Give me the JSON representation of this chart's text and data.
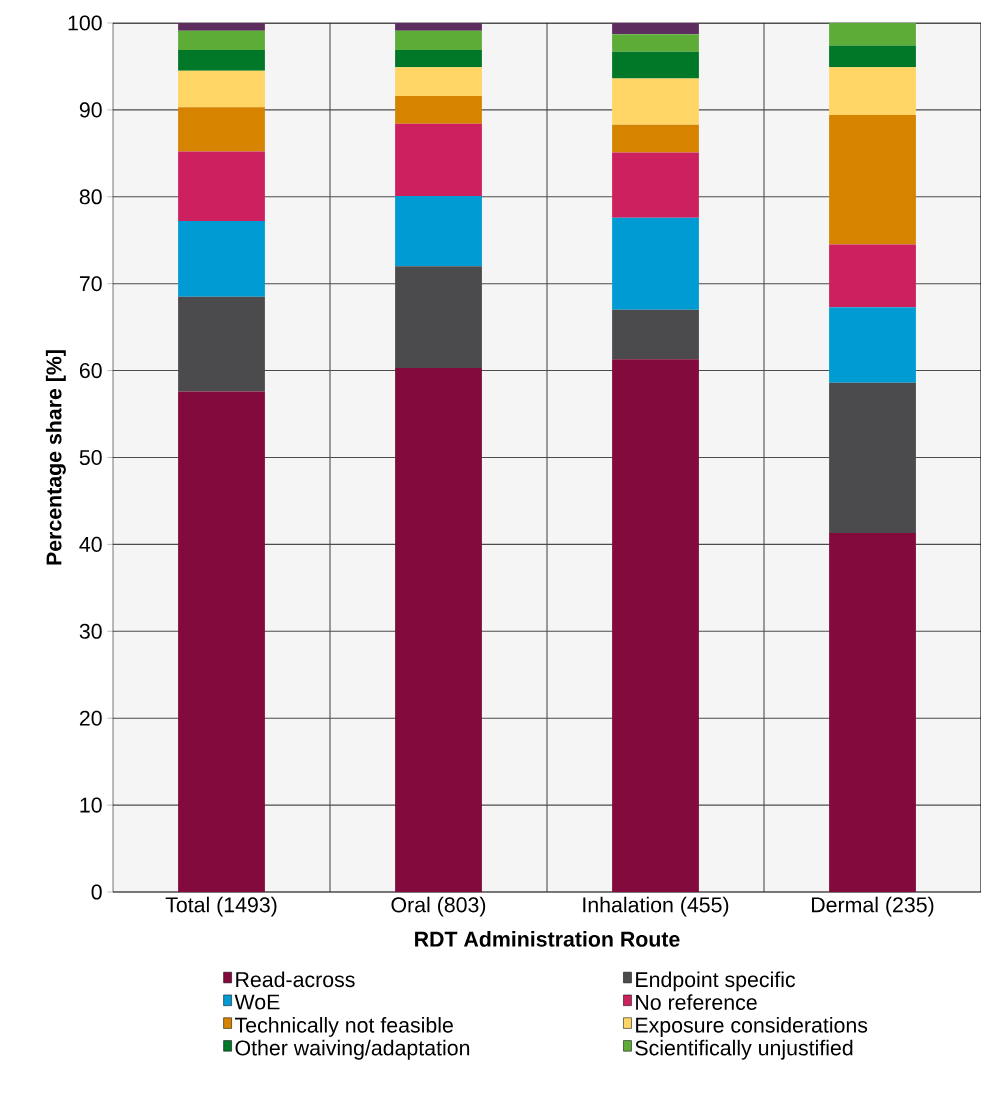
{
  "chart_data": {
    "type": "bar",
    "stacked": true,
    "xlabel": "RDT Administration Route",
    "ylabel": "Percentage share [%]",
    "categories": [
      "Total (1493)",
      "Oral (803)",
      "Inhalation (455)",
      "Dermal (235)"
    ],
    "series": [
      {
        "name": "Read-across",
        "color": "#820a3c",
        "values": [
          57.6,
          60.3,
          61.3,
          41.3
        ]
      },
      {
        "name": "Endpoint specific",
        "color": "#4b4b4d",
        "values": [
          10.9,
          11.7,
          5.7,
          17.3
        ]
      },
      {
        "name": "WoE",
        "color": "#009bd2",
        "values": [
          8.7,
          8.1,
          10.6,
          8.7
        ]
      },
      {
        "name": "No reference",
        "color": "#cd215f",
        "values": [
          8.0,
          8.3,
          7.5,
          7.2
        ]
      },
      {
        "name": "Technically not feasible",
        "color": "#d68400",
        "values": [
          5.1,
          3.2,
          3.2,
          14.9
        ]
      },
      {
        "name": "Exposure considerations",
        "color": "#ffd566",
        "values": [
          4.2,
          3.3,
          5.3,
          5.5
        ]
      },
      {
        "name": "Other waiving/adaptation",
        "color": "#007828",
        "values": [
          2.4,
          2.0,
          3.1,
          2.5
        ]
      },
      {
        "name": "Scientifically unjustified",
        "color": "#5eac38",
        "values": [
          2.2,
          2.2,
          2.0,
          2.6
        ]
      },
      {
        "color": "#5e2d5f",
        "values": [
          0.9,
          0.9,
          1.3,
          0
        ]
      }
    ],
    "ylim": [
      0,
      100
    ],
    "yticks": [
      0,
      10,
      20,
      30,
      40,
      50,
      60,
      70,
      80,
      90,
      100
    ],
    "grid": true,
    "legend": "bottom"
  }
}
